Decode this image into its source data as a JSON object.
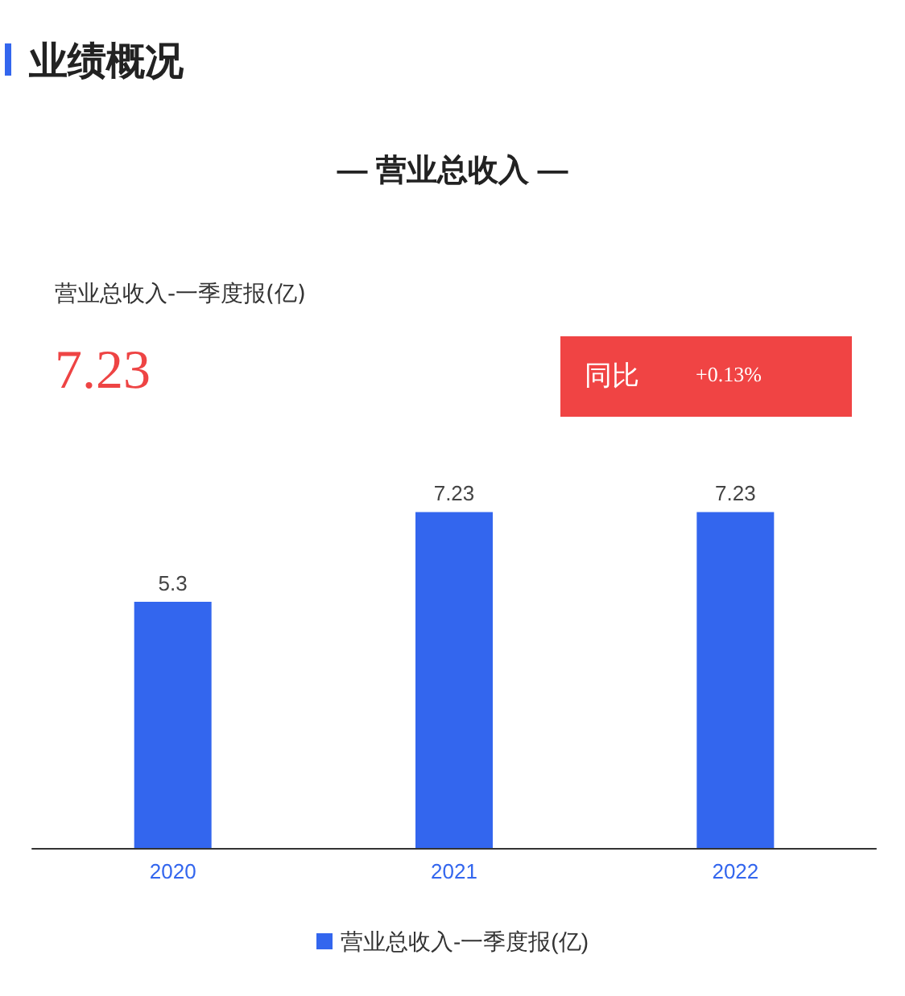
{
  "chart_data": {
    "type": "bar",
    "title": "— 营业总收入 —",
    "annotations": [
      "业绩概况",
      "营业总收入-一季度报(亿)",
      "7.23",
      "同比",
      "+0.13%"
    ],
    "categories": [
      "2020",
      "2021",
      "2022"
    ],
    "series": [
      {
        "name": "营业总收入-一季度报(亿)",
        "color": "#3366ee",
        "values": [
          5.3,
          7.23,
          7.23
        ]
      }
    ],
    "data_labels": true,
    "legend": "bottom"
  }
}
